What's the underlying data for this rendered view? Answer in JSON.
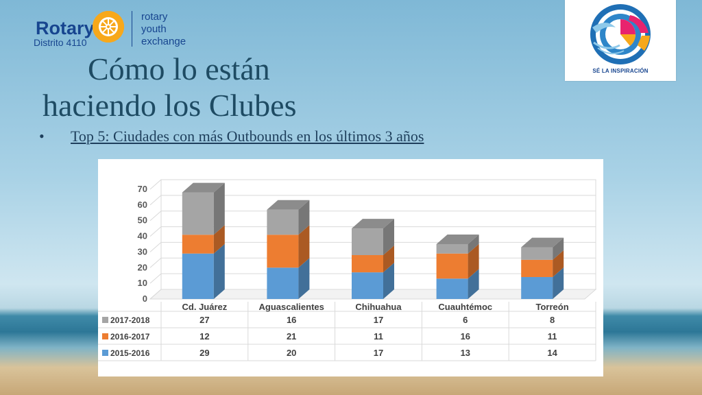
{
  "header": {
    "logo_brand": "Rotary",
    "logo_district": "Distrito 4110",
    "youth_exchange": [
      "rotary",
      "youth",
      "exchange"
    ],
    "badge_text": "SÉ LA INSPIRACIÓN"
  },
  "title": {
    "line1": "Cómo lo están",
    "line2": "haciendo los Clubes"
  },
  "bullet": {
    "marker": "•",
    "text": "Top 5: Ciudades con más Outbounds en los últimos 3 años"
  },
  "colors": {
    "series_2017_2018": "#a5a5a5",
    "series_2016_2017": "#ed7d31",
    "series_2015_2016": "#5b9bd5",
    "title_text": "#1e4b63",
    "rotary_blue": "#17458f",
    "rotary_gold": "#f7a81b"
  },
  "chart_data": {
    "type": "bar",
    "stacked": true,
    "style": "3d",
    "categories": [
      "Cd. Juárez",
      "Aguascalientes",
      "Chihuahua",
      "Cuauhtémoc",
      "Torreón"
    ],
    "series": [
      {
        "name": "2015-2016",
        "values": [
          29,
          20,
          17,
          13,
          14
        ],
        "color": "#5b9bd5"
      },
      {
        "name": "2016-2017",
        "values": [
          12,
          21,
          11,
          16,
          11
        ],
        "color": "#ed7d31"
      },
      {
        "name": "2017-2018",
        "values": [
          27,
          16,
          17,
          6,
          8
        ],
        "color": "#a5a5a5"
      }
    ],
    "table_order": [
      "2017-2018",
      "2016-2017",
      "2015-2016"
    ],
    "ylim": [
      0,
      70
    ],
    "yticks": [
      0,
      10,
      20,
      30,
      40,
      50,
      60,
      70
    ],
    "grid": true,
    "legend": "data-table-below"
  }
}
